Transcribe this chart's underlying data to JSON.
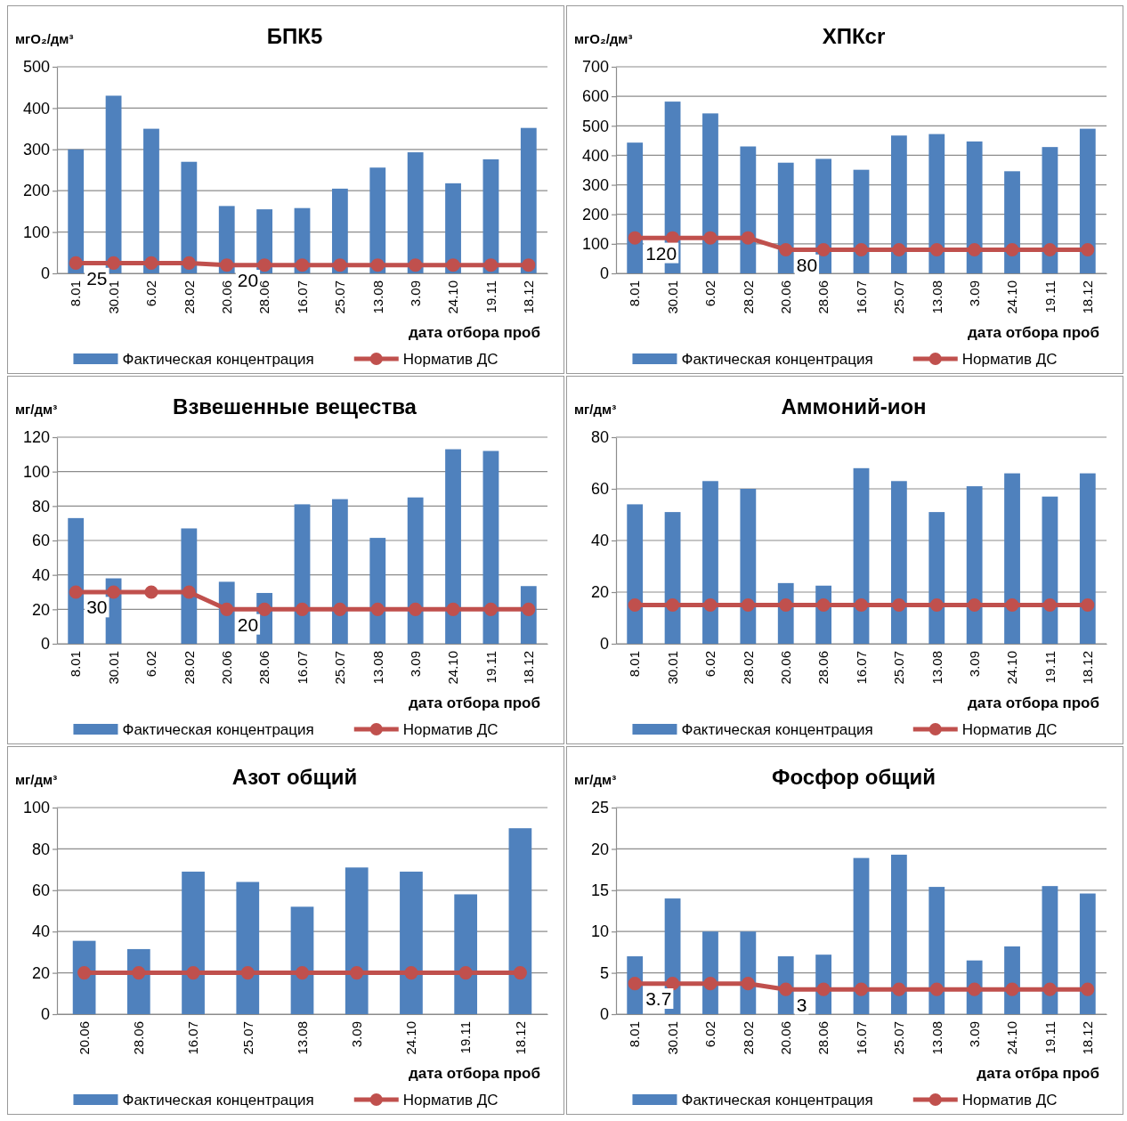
{
  "chart_data": [
    {
      "type": "bar",
      "title": "БПК5",
      "ylabel": "мгО₂/дм³",
      "xlabel": "дата отбора проб",
      "legend": "bottom",
      "grid": "y",
      "marker": "circle",
      "ylim": [
        0,
        500
      ],
      "yticks": [
        0,
        100,
        200,
        300,
        400,
        500
      ],
      "categories": [
        "8.01",
        "30.01",
        "6.02",
        "28.02",
        "20.06",
        "28.06",
        "16.07",
        "25.07",
        "13.08",
        "3.09",
        "24.10",
        "19.11",
        "18.12"
      ],
      "series": [
        {
          "name": "Фактическая концентрация",
          "color": "#4f81bd",
          "values": [
            300,
            430,
            350,
            270,
            163,
            155,
            158,
            205,
            256,
            293,
            218,
            276,
            352
          ]
        },
        {
          "name": "Норматив ДС",
          "type": "line",
          "color": "#c0504d",
          "values": [
            25,
            25,
            25,
            25,
            20,
            20,
            20,
            20,
            20,
            20,
            20,
            20,
            20
          ],
          "value_labels": [
            "25",
            null,
            null,
            null,
            "20",
            null,
            null,
            null,
            null,
            null,
            null,
            null,
            null
          ]
        }
      ]
    },
    {
      "type": "bar",
      "title": "ХПКcr",
      "ylabel": "мгО₂/дм³",
      "xlabel": "дата отбора проб",
      "legend": "bottom",
      "grid": "y",
      "marker": "circle",
      "ylim": [
        0,
        700
      ],
      "yticks": [
        0,
        100,
        200,
        300,
        400,
        500,
        600,
        700
      ],
      "categories": [
        "8.01",
        "30.01",
        "6.02",
        "28.02",
        "20.06",
        "28.06",
        "16.07",
        "25.07",
        "13.08",
        "3.09",
        "24.10",
        "19.11",
        "18.12"
      ],
      "series": [
        {
          "name": "Фактическая концентрация",
          "color": "#4f81bd",
          "values": [
            443,
            582,
            542,
            430,
            375,
            388,
            351,
            467,
            472,
            447,
            346,
            428,
            490
          ]
        },
        {
          "name": "Норматив ДС",
          "type": "line",
          "color": "#c0504d",
          "values": [
            120,
            120,
            120,
            120,
            80,
            80,
            80,
            80,
            80,
            80,
            80,
            80,
            80
          ],
          "value_labels": [
            "120",
            null,
            null,
            null,
            "80",
            null,
            null,
            null,
            null,
            null,
            null,
            null,
            null
          ]
        }
      ]
    },
    {
      "type": "bar",
      "title": "Взвешенные вещества",
      "ylabel": "мг/дм³",
      "xlabel": "дата отбора проб",
      "legend": "bottom",
      "grid": "y",
      "marker": "circle",
      "ylim": [
        0,
        120
      ],
      "yticks": [
        0,
        20,
        40,
        60,
        80,
        100,
        120
      ],
      "categories": [
        "8.01",
        "30.01",
        "6.02",
        "28.02",
        "20.06",
        "28.06",
        "16.07",
        "25.07",
        "13.08",
        "3.09",
        "24.10",
        "19.11",
        "18.12"
      ],
      "series": [
        {
          "name": "Фактическая концентрация",
          "color": "#4f81bd",
          "values": [
            73,
            38,
            null,
            67,
            36,
            29.5,
            81,
            84,
            61.5,
            85,
            113,
            112,
            33.5
          ]
        },
        {
          "name": "Норматив ДС",
          "type": "line",
          "color": "#c0504d",
          "values": [
            30,
            30,
            30,
            30,
            20,
            20,
            20,
            20,
            20,
            20,
            20,
            20,
            20
          ],
          "value_labels": [
            "30",
            null,
            null,
            null,
            "20",
            null,
            null,
            null,
            null,
            null,
            null,
            null,
            null
          ]
        }
      ]
    },
    {
      "type": "bar",
      "title": "Аммоний-ион",
      "ylabel": "мг/дм³",
      "xlabel": "дата отбора проб",
      "legend": "bottom",
      "grid": "y",
      "marker": "circle",
      "ylim": [
        0,
        80
      ],
      "yticks": [
        0,
        20,
        40,
        60,
        80
      ],
      "categories": [
        "8.01",
        "30.01",
        "6.02",
        "28.02",
        "20.06",
        "28.06",
        "16.07",
        "25.07",
        "13.08",
        "3.09",
        "24.10",
        "19.11",
        "18.12"
      ],
      "series": [
        {
          "name": "Фактическая концентрация",
          "color": "#4f81bd",
          "values": [
            54,
            51,
            63,
            60,
            23.5,
            22.5,
            68,
            63,
            51,
            61,
            66,
            57,
            66
          ]
        },
        {
          "name": "Норматив ДС",
          "type": "line",
          "color": "#c0504d",
          "values": [
            15,
            15,
            15,
            15,
            15,
            15,
            15,
            15,
            15,
            15,
            15,
            15,
            15
          ]
        }
      ]
    },
    {
      "type": "bar",
      "title": "Азот общий",
      "ylabel": "мг/дм³",
      "xlabel": "дата отбора проб",
      "legend": "bottom",
      "grid": "y",
      "marker": "circle",
      "ylim": [
        0,
        100
      ],
      "yticks": [
        0,
        20,
        40,
        60,
        80,
        100
      ],
      "categories": [
        "20.06",
        "28.06",
        "16.07",
        "25.07",
        "13.08",
        "3.09",
        "24.10",
        "19.11",
        "18.12"
      ],
      "series": [
        {
          "name": "Фактическая концентрация",
          "color": "#4f81bd",
          "values": [
            35.5,
            31.5,
            69,
            64,
            52,
            71,
            69,
            58,
            90
          ]
        },
        {
          "name": "Норматив ДС",
          "type": "line",
          "color": "#c0504d",
          "values": [
            20,
            20,
            20,
            20,
            20,
            20,
            20,
            20,
            20
          ]
        }
      ]
    },
    {
      "type": "bar",
      "title": "Фосфор общий",
      "ylabel": "мг/дм³",
      "xlabel": "дата отбра проб",
      "legend": "bottom",
      "grid": "y",
      "marker": "circle",
      "ylim": [
        0,
        25
      ],
      "yticks": [
        0,
        5,
        10,
        15,
        20,
        25
      ],
      "categories": [
        "8.01",
        "30.01",
        "6.02",
        "28.02",
        "20.06",
        "28.06",
        "16.07",
        "25.07",
        "13.08",
        "3.09",
        "24.10",
        "19.11",
        "18.12"
      ],
      "series": [
        {
          "name": "Фактическая концентрация",
          "color": "#4f81bd",
          "values": [
            7,
            14,
            10,
            10,
            7,
            7.2,
            18.9,
            19.3,
            15.4,
            6.5,
            8.2,
            15.5,
            14.6
          ]
        },
        {
          "name": "Норматив ДС",
          "type": "line",
          "color": "#c0504d",
          "values": [
            3.7,
            3.7,
            3.7,
            3.7,
            3,
            3,
            3,
            3,
            3,
            3,
            3,
            3,
            3
          ],
          "value_labels": [
            "3.7",
            null,
            null,
            null,
            "3",
            null,
            null,
            null,
            null,
            null,
            null,
            null,
            null
          ]
        }
      ]
    }
  ]
}
